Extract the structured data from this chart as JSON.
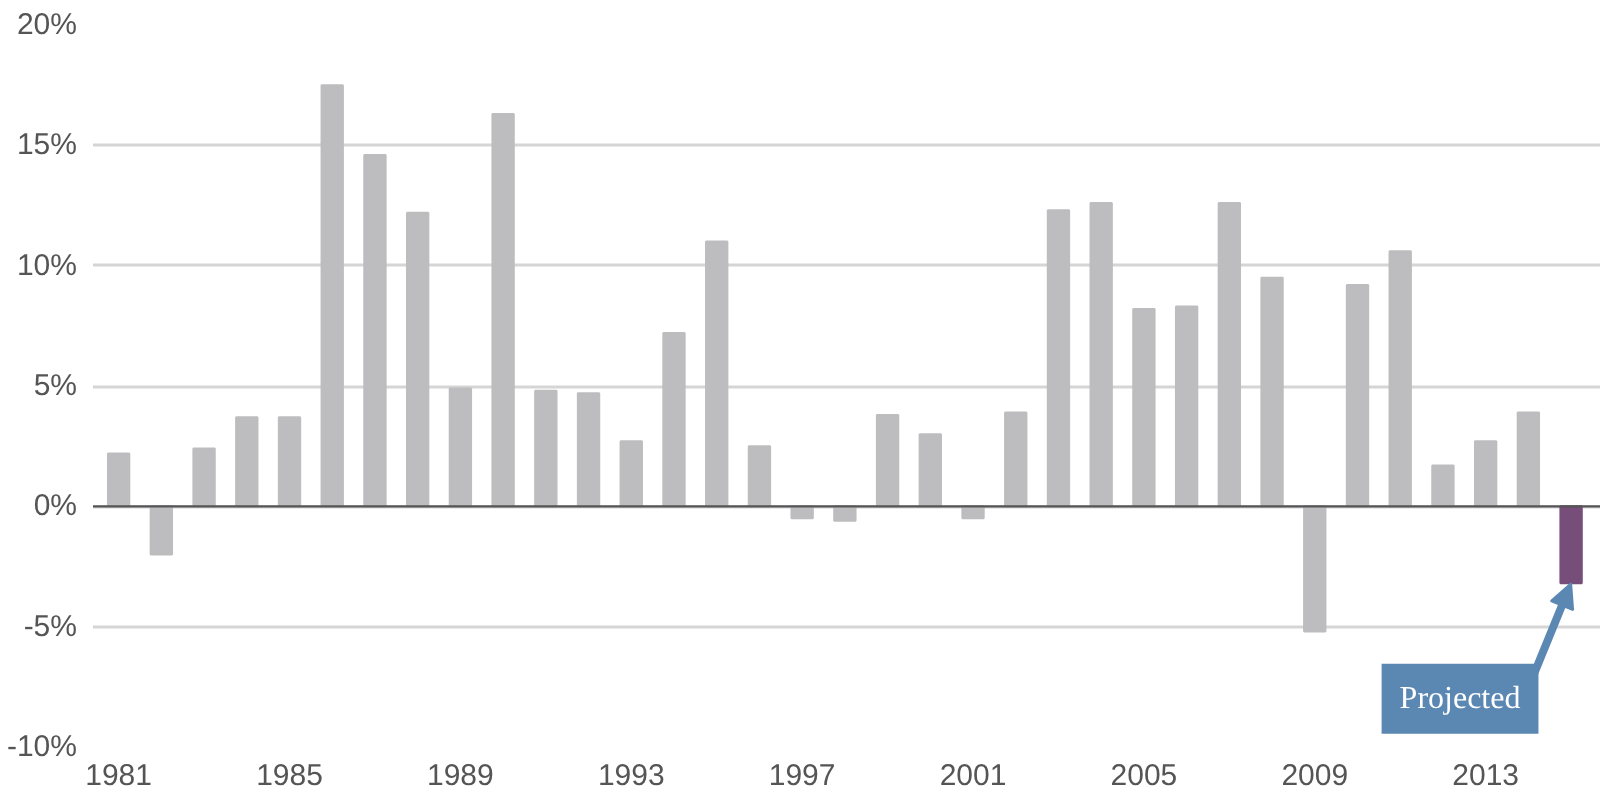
{
  "chart_data": {
    "type": "bar",
    "x": [
      1981,
      1982,
      1983,
      1984,
      1985,
      1986,
      1987,
      1988,
      1989,
      1990,
      1991,
      1992,
      1993,
      1994,
      1995,
      1996,
      1997,
      1998,
      1999,
      2000,
      2001,
      2002,
      2003,
      2004,
      2005,
      2006,
      2007,
      2008,
      2009,
      2010,
      2011,
      2012,
      2013,
      2014,
      2015
    ],
    "values": [
      2.2,
      -2.0,
      2.4,
      3.7,
      3.7,
      17.5,
      14.6,
      12.2,
      4.9,
      16.3,
      4.8,
      4.7,
      2.7,
      7.2,
      11.0,
      2.5,
      -0.5,
      -0.6,
      3.8,
      3.0,
      -0.5,
      3.9,
      12.3,
      12.6,
      8.2,
      8.3,
      12.6,
      9.5,
      -5.2,
      9.2,
      10.6,
      1.7,
      2.7,
      3.9,
      -3.2
    ],
    "colors": [
      "#bdbdbf",
      "#bdbdbf",
      "#bdbdbf",
      "#bdbdbf",
      "#bdbdbf",
      "#bdbdbf",
      "#bdbdbf",
      "#bdbdbf",
      "#bdbdbf",
      "#bdbdbf",
      "#bdbdbf",
      "#bdbdbf",
      "#bdbdbf",
      "#bdbdbf",
      "#bdbdbf",
      "#bdbdbf",
      "#bdbdbf",
      "#bdbdbf",
      "#bdbdbf",
      "#bdbdbf",
      "#bdbdbf",
      "#bdbdbf",
      "#bdbdbf",
      "#bdbdbf",
      "#bdbdbf",
      "#bdbdbf",
      "#bdbdbf",
      "#bdbdbf",
      "#bdbdbf",
      "#bdbdbf",
      "#bdbdbf",
      "#bdbdbf",
      "#bdbdbf",
      "#bdbdbf",
      "#774d7a"
    ],
    "xlim": [
      1980.4,
      2015.7
    ],
    "xticks": [
      1981,
      1985,
      1989,
      1993,
      1997,
      2001,
      2005,
      2009,
      2013
    ],
    "ylim": [
      -10,
      20
    ],
    "yticks": [
      {
        "value": -10,
        "label": "-10%"
      },
      {
        "value": -5,
        "label": "-5%"
      },
      {
        "value": 0,
        "label": "0%"
      },
      {
        "value": 5,
        "label": "5%"
      },
      {
        "value": 10,
        "label": "10%"
      },
      {
        "value": 15,
        "label": "15%"
      },
      {
        "value": 20,
        "label": "20%"
      }
    ],
    "grid": "y",
    "annotations": [
      {
        "text": "Projected",
        "x": 2015,
        "y": -3.2
      }
    ]
  }
}
